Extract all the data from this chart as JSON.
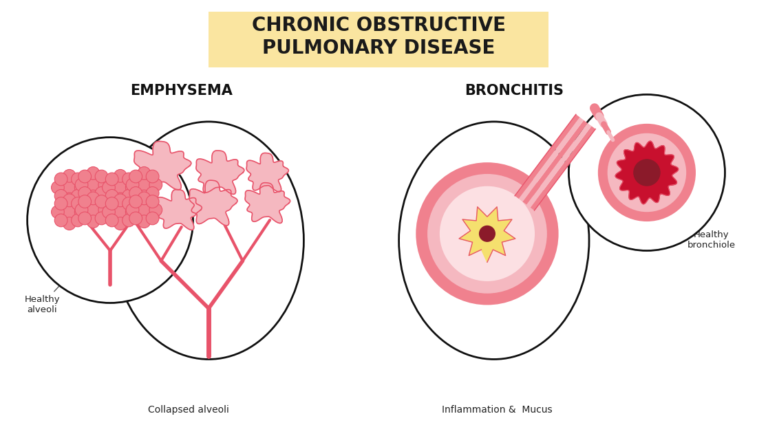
{
  "title": "CHRONIC OBSTRUCTIVE\nPULMONARY DISEASE",
  "title_bg": "#FAE5A0",
  "title_fontsize": 20,
  "emphysema_label": "EMPHYSEMA",
  "bronchitis_label": "BRONCHITIS",
  "healthy_alveoli_label": "Healthy\nalveoli",
  "collapsed_alveoli_label": "Collapsed alveoli",
  "inflammation_label": "Inflammation &  Mucus",
  "healthy_bronchiole_label": "Healthy\nbronchiole",
  "bg_color": "#ffffff",
  "circle_edge": "#111111",
  "pink_dark": "#e8536a",
  "pink_mid": "#f0818e",
  "pink_light": "#f5b8c0",
  "pink_pale": "#fce0e3",
  "yellow": "#f5e06e",
  "dark_red": "#8b1a2a",
  "red_inner": "#c8102e",
  "stem_color": "#e8536a"
}
